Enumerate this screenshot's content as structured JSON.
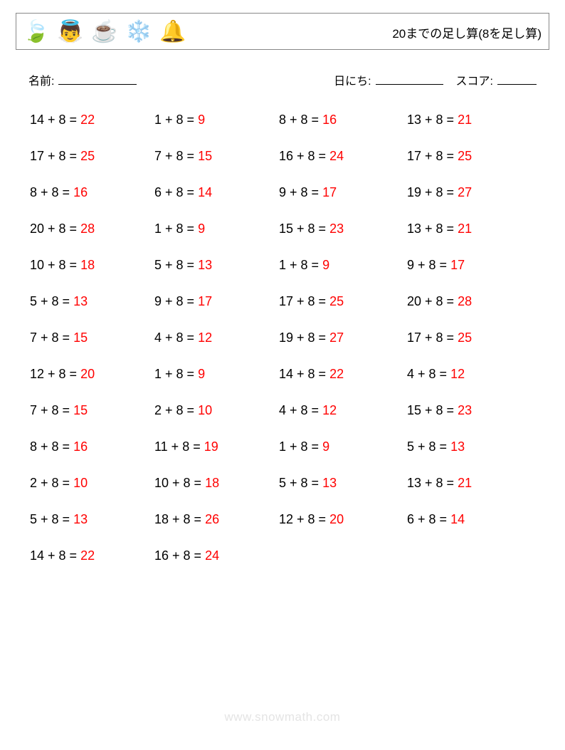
{
  "header": {
    "title": "20までの足し算(8を足し算)",
    "icons": [
      "🍃",
      "👼",
      "☕",
      "❄️",
      "🔔"
    ]
  },
  "info": {
    "name_label": "名前:",
    "date_label": "日にち:",
    "score_label": "スコア:"
  },
  "styling": {
    "answer_color": "#ff0000",
    "text_color": "#000000",
    "border_color": "#888888",
    "watermark_color": "#e4e4e4",
    "font_size_problem": 18,
    "font_size_title": 17,
    "grid_columns": 4
  },
  "problems": [
    {
      "a": 14,
      "b": 8,
      "ans": 22
    },
    {
      "a": 1,
      "b": 8,
      "ans": 9
    },
    {
      "a": 8,
      "b": 8,
      "ans": 16
    },
    {
      "a": 13,
      "b": 8,
      "ans": 21
    },
    {
      "a": 17,
      "b": 8,
      "ans": 25
    },
    {
      "a": 7,
      "b": 8,
      "ans": 15
    },
    {
      "a": 16,
      "b": 8,
      "ans": 24
    },
    {
      "a": 17,
      "b": 8,
      "ans": 25
    },
    {
      "a": 8,
      "b": 8,
      "ans": 16
    },
    {
      "a": 6,
      "b": 8,
      "ans": 14
    },
    {
      "a": 9,
      "b": 8,
      "ans": 17
    },
    {
      "a": 19,
      "b": 8,
      "ans": 27
    },
    {
      "a": 20,
      "b": 8,
      "ans": 28
    },
    {
      "a": 1,
      "b": 8,
      "ans": 9
    },
    {
      "a": 15,
      "b": 8,
      "ans": 23
    },
    {
      "a": 13,
      "b": 8,
      "ans": 21
    },
    {
      "a": 10,
      "b": 8,
      "ans": 18
    },
    {
      "a": 5,
      "b": 8,
      "ans": 13
    },
    {
      "a": 1,
      "b": 8,
      "ans": 9
    },
    {
      "a": 9,
      "b": 8,
      "ans": 17
    },
    {
      "a": 5,
      "b": 8,
      "ans": 13
    },
    {
      "a": 9,
      "b": 8,
      "ans": 17
    },
    {
      "a": 17,
      "b": 8,
      "ans": 25
    },
    {
      "a": 20,
      "b": 8,
      "ans": 28
    },
    {
      "a": 7,
      "b": 8,
      "ans": 15
    },
    {
      "a": 4,
      "b": 8,
      "ans": 12
    },
    {
      "a": 19,
      "b": 8,
      "ans": 27
    },
    {
      "a": 17,
      "b": 8,
      "ans": 25
    },
    {
      "a": 12,
      "b": 8,
      "ans": 20
    },
    {
      "a": 1,
      "b": 8,
      "ans": 9
    },
    {
      "a": 14,
      "b": 8,
      "ans": 22
    },
    {
      "a": 4,
      "b": 8,
      "ans": 12
    },
    {
      "a": 7,
      "b": 8,
      "ans": 15
    },
    {
      "a": 2,
      "b": 8,
      "ans": 10
    },
    {
      "a": 4,
      "b": 8,
      "ans": 12
    },
    {
      "a": 15,
      "b": 8,
      "ans": 23
    },
    {
      "a": 8,
      "b": 8,
      "ans": 16
    },
    {
      "a": 11,
      "b": 8,
      "ans": 19
    },
    {
      "a": 1,
      "b": 8,
      "ans": 9
    },
    {
      "a": 5,
      "b": 8,
      "ans": 13
    },
    {
      "a": 2,
      "b": 8,
      "ans": 10
    },
    {
      "a": 10,
      "b": 8,
      "ans": 18
    },
    {
      "a": 5,
      "b": 8,
      "ans": 13
    },
    {
      "a": 13,
      "b": 8,
      "ans": 21
    },
    {
      "a": 5,
      "b": 8,
      "ans": 13
    },
    {
      "a": 18,
      "b": 8,
      "ans": 26
    },
    {
      "a": 12,
      "b": 8,
      "ans": 20
    },
    {
      "a": 6,
      "b": 8,
      "ans": 14
    },
    {
      "a": 14,
      "b": 8,
      "ans": 22
    },
    {
      "a": 16,
      "b": 8,
      "ans": 24
    }
  ],
  "watermark": "www.snowmath.com"
}
